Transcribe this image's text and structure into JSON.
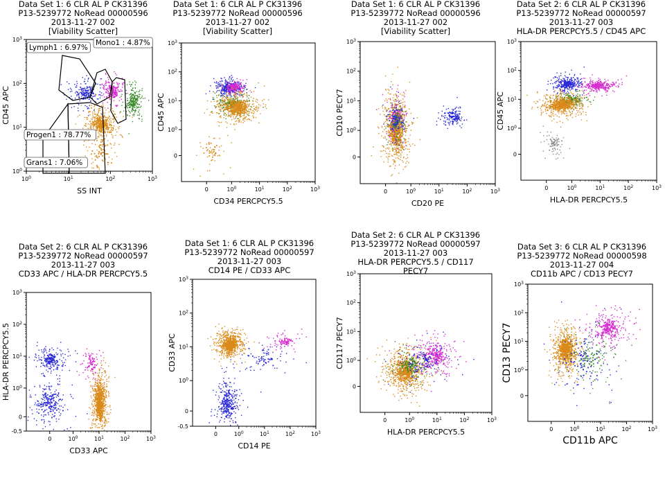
{
  "colors": {
    "lymph": "#2a2ad8",
    "mono": "#d62cd0",
    "progen": "#d98a1a",
    "grans": "#3a8a2a",
    "dead": "#8a8a8a",
    "axis": "#000000"
  },
  "chart_data": [
    {
      "type": "scatter",
      "title_lines": [
        "Data Set 1: 6 CLR AL P CK31396",
        "P13-5239772 NoRead 00000596",
        "2013-11-27 002",
        "[Viability Scatter]"
      ],
      "xlabel": "SS INT",
      "ylabel": "CD45 APC",
      "x_scale": "log",
      "y_scale": "log",
      "xlim": [
        1,
        1000
      ],
      "ylim": [
        1,
        1000
      ],
      "x_ticks": [
        "10^0",
        "10^1",
        "10^2",
        "10^3"
      ],
      "y_ticks": [
        "10^0",
        "10^1",
        "10^2",
        "10^3"
      ],
      "gates": [
        {
          "label": "Lymph1 : 6.97%"
        },
        {
          "label": "Mono1 : 4.87%"
        },
        {
          "label": "Progen1 : 78.77%"
        },
        {
          "label": "Grans1 : 7.06%"
        }
      ],
      "clusters": [
        {
          "population": "lymph",
          "x": 25,
          "y": 60,
          "sx": 0.18,
          "sy": 0.14,
          "n": 120
        },
        {
          "population": "mono",
          "x": 110,
          "y": 70,
          "sx": 0.1,
          "sy": 0.12,
          "n": 120
        },
        {
          "population": "grans",
          "x": 350,
          "y": 40,
          "sx": 0.1,
          "sy": 0.16,
          "n": 140
        },
        {
          "population": "progen",
          "x": 60,
          "y": 12,
          "sx": 0.14,
          "sy": 0.14,
          "n": 320
        },
        {
          "population": "progen",
          "x": 60,
          "y": 3,
          "sx": 0.2,
          "sy": 0.3,
          "n": 80
        }
      ]
    },
    {
      "type": "scatter",
      "title_lines": [
        "Data Set 1: 6 CLR AL P CK31396",
        "P13-5239772 NoRead 00000596",
        "2013-11-27 002",
        "[Viability Scatter]"
      ],
      "xlabel": "CD34 PERCPCY5.5",
      "ylabel": "CD45 APC",
      "x_scale": "biex",
      "y_scale": "biex",
      "xlim": [
        -1,
        1000
      ],
      "ylim": [
        -1,
        1000
      ],
      "x_ticks": [
        "0",
        "10^0",
        "10^1",
        "10^2",
        "10^3"
      ],
      "y_ticks": [
        "0",
        "10^0",
        "10^1",
        "10^2",
        "10^3"
      ],
      "clusters": [
        {
          "population": "lymph",
          "x": 0.9,
          "y": 30,
          "sx": 0.2,
          "sy": 0.12,
          "n": 220
        },
        {
          "population": "mono",
          "x": 1.2,
          "y": 30,
          "sx": 0.15,
          "sy": 0.1,
          "n": 120
        },
        {
          "population": "grans",
          "x": 1.0,
          "y": 8,
          "sx": 0.25,
          "sy": 0.15,
          "n": 150
        },
        {
          "population": "progen",
          "x": 1.5,
          "y": 6,
          "sx": 0.3,
          "sy": 0.18,
          "n": 420
        },
        {
          "population": "progen",
          "x": 0.2,
          "y": 0.2,
          "sx": 0.2,
          "sy": 0.25,
          "n": 40
        }
      ]
    },
    {
      "type": "scatter",
      "title_lines": [
        "Data Set 1: 6 CLR AL P CK31396",
        "P13-5239772 NoRead 00000596",
        "2013-11-27 002",
        "[Viability Scatter]"
      ],
      "xlabel": "CD20 PE",
      "ylabel": "CD10 PECY7",
      "x_scale": "biex",
      "y_scale": "biex",
      "xlim": [
        -1,
        1000
      ],
      "ylim": [
        -1,
        1000
      ],
      "x_ticks": [
        "0",
        "10^0",
        "10^1",
        "10^2",
        "10^3"
      ],
      "y_ticks": [
        "0",
        "10^0",
        "10^1",
        "10^2",
        "10^3"
      ],
      "clusters": [
        {
          "population": "progen",
          "x": 0.4,
          "y": 1.0,
          "sx": 0.18,
          "sy": 0.45,
          "n": 520
        },
        {
          "population": "mono",
          "x": 0.4,
          "y": 3.0,
          "sx": 0.15,
          "sy": 0.3,
          "n": 100
        },
        {
          "population": "grans",
          "x": 0.4,
          "y": 2.0,
          "sx": 0.12,
          "sy": 0.3,
          "n": 80
        },
        {
          "population": "lymph",
          "x": 30,
          "y": 3,
          "sx": 0.18,
          "sy": 0.15,
          "n": 90
        },
        {
          "population": "lymph",
          "x": 0.4,
          "y": 2.0,
          "sx": 0.15,
          "sy": 0.3,
          "n": 60
        }
      ]
    },
    {
      "type": "scatter",
      "title_lines": [
        "Data Set 2: 6 CLR AL P CK31396",
        "P13-5239772 NoRead 00000597",
        "2013-11-27 003",
        "HLA-DR PERCPCY5.5 / CD45 APC"
      ],
      "xlabel": "HLA-DR PERCPCY5.5",
      "ylabel": "CD45 APC",
      "x_scale": "biex",
      "y_scale": "biex",
      "xlim": [
        -1,
        1000
      ],
      "ylim": [
        -1,
        1000
      ],
      "x_ticks": [
        "0",
        "10^0",
        "10^1",
        "10^2",
        "10^3"
      ],
      "y_ticks": [
        "0",
        "10^0",
        "10^1",
        "10^2",
        "10^3"
      ],
      "clusters": [
        {
          "population": "lymph",
          "x": 0.8,
          "y": 35,
          "sx": 0.2,
          "sy": 0.12,
          "n": 200
        },
        {
          "population": "mono",
          "x": 8,
          "y": 30,
          "sx": 0.3,
          "sy": 0.1,
          "n": 180
        },
        {
          "population": "grans",
          "x": 1.0,
          "y": 10,
          "sx": 0.25,
          "sy": 0.12,
          "n": 120
        },
        {
          "population": "progen",
          "x": 0.6,
          "y": 7,
          "sx": 0.3,
          "sy": 0.15,
          "n": 420
        },
        {
          "population": "dead",
          "x": 0.3,
          "y": 0.4,
          "sx": 0.15,
          "sy": 0.2,
          "n": 50
        }
      ]
    },
    {
      "type": "scatter",
      "title_lines": [
        "Data Set 2: 6 CLR AL P CK31396",
        "P13-5239772 NoRead 00000597",
        "2013-11-27 003",
        "CD33 APC / HLA-DR PERCPCY5.5"
      ],
      "xlabel": "CD33 APC",
      "ylabel": "HLA-DR PERCPCY5.5",
      "x_scale": "biex",
      "y_scale": "biex",
      "xlim": [
        -1,
        1000
      ],
      "ylim": [
        -0.5,
        1000
      ],
      "x_ticks": [
        "0",
        "10^0",
        "10^1",
        "10^2",
        "10^3"
      ],
      "y_ticks": [
        "-0.5",
        "0",
        "10^0",
        "10^1",
        "10^2",
        "10^3"
      ],
      "clusters": [
        {
          "population": "lymph",
          "x": 0.0,
          "y": 8,
          "sx": 0.25,
          "sy": 0.15,
          "n": 140
        },
        {
          "population": "lymph",
          "x": 0.0,
          "y": 0.5,
          "sx": 0.3,
          "sy": 0.3,
          "n": 160
        },
        {
          "population": "mono",
          "x": 5,
          "y": 6,
          "sx": 0.15,
          "sy": 0.2,
          "n": 60
        },
        {
          "population": "progen",
          "x": 10,
          "y": 0.5,
          "sx": 0.12,
          "sy": 0.4,
          "n": 520
        }
      ]
    },
    {
      "type": "scatter",
      "title_lines": [
        "Data Set 1: 6 CLR AL P CK31396",
        "P13-5239772 NoRead 00000597",
        "2013-11-27 003",
        "CD14 PE / CD33 APC"
      ],
      "xlabel": "CD14 PE",
      "ylabel": "CD33 APC",
      "x_scale": "biex",
      "y_scale": "biex",
      "xlim": [
        -1,
        1000
      ],
      "ylim": [
        -0.5,
        1000
      ],
      "x_ticks": [
        "0",
        "10^0",
        "10^1",
        "10^2",
        "10^3"
      ],
      "y_ticks": [
        "-0.5",
        "0",
        "10^0",
        "10^1",
        "10^2",
        "10^3"
      ],
      "clusters": [
        {
          "population": "progen",
          "x": 0.6,
          "y": 12,
          "sx": 0.2,
          "sy": 0.15,
          "n": 500
        },
        {
          "population": "lymph",
          "x": 0.5,
          "y": 0.3,
          "sx": 0.2,
          "sy": 0.35,
          "n": 200
        },
        {
          "population": "mono",
          "x": 60,
          "y": 15,
          "sx": 0.25,
          "sy": 0.1,
          "n": 60
        },
        {
          "population": "lymph",
          "x": 10,
          "y": 5,
          "sx": 0.4,
          "sy": 0.2,
          "n": 50
        }
      ]
    },
    {
      "type": "scatter",
      "title_lines": [
        "Data Set 2: 6 CLR AL P CK31396",
        "P13-5239772 NoRead 00000597",
        "2013-11-27 003",
        "HLA-DR PERCPCY5.5 / CD117",
        "PECY7"
      ],
      "xlabel": "HLA-DR PERCPCY5.5",
      "ylabel": "CD117 PECY7",
      "x_scale": "biex",
      "y_scale": "biex",
      "xlim": [
        -1,
        1000
      ],
      "ylim": [
        -1,
        1000
      ],
      "x_ticks": [
        "0",
        "10^0",
        "10^1",
        "10^2",
        "10^3"
      ],
      "y_ticks": [
        "0",
        "10^0",
        "10^1",
        "10^2",
        "10^3"
      ],
      "clusters": [
        {
          "population": "progen",
          "x": 0.8,
          "y": 0.6,
          "sx": 0.3,
          "sy": 0.3,
          "n": 520
        },
        {
          "population": "mono",
          "x": 8,
          "y": 1.5,
          "sx": 0.3,
          "sy": 0.25,
          "n": 200
        },
        {
          "population": "grans",
          "x": 1.0,
          "y": 0.8,
          "sx": 0.25,
          "sy": 0.2,
          "n": 90
        },
        {
          "population": "lymph",
          "x": 3,
          "y": 1.0,
          "sx": 0.4,
          "sy": 0.3,
          "n": 80
        }
      ]
    },
    {
      "type": "scatter",
      "title_lines": [
        "Data Set 3: 6 CLR AL P CK31396",
        "P13-5239772 NoRead 00000598",
        "2013-11-27 004",
        "CD11b APC / CD13 PECY7"
      ],
      "xlabel": "CD11b APC",
      "ylabel": "CD13 PECY7",
      "x_scale": "biex",
      "y_scale": "biex",
      "xlim": [
        -1,
        1000
      ],
      "ylim": [
        -1,
        1000
      ],
      "x_ticks": [
        "0",
        "10^0",
        "10^1",
        "10^2",
        "10^3"
      ],
      "y_ticks": [
        "0",
        "10^0",
        "10^1",
        "10^2",
        "10^3"
      ],
      "clusters": [
        {
          "population": "progen",
          "x": 0.6,
          "y": 5,
          "sx": 0.2,
          "sy": 0.3,
          "n": 520
        },
        {
          "population": "mono",
          "x": 20,
          "y": 30,
          "sx": 0.3,
          "sy": 0.25,
          "n": 200
        },
        {
          "population": "grans",
          "x": 4,
          "y": 3,
          "sx": 0.4,
          "sy": 0.4,
          "n": 80
        },
        {
          "population": "lymph",
          "x": 2,
          "y": 2,
          "sx": 0.5,
          "sy": 0.5,
          "n": 80
        }
      ]
    }
  ]
}
